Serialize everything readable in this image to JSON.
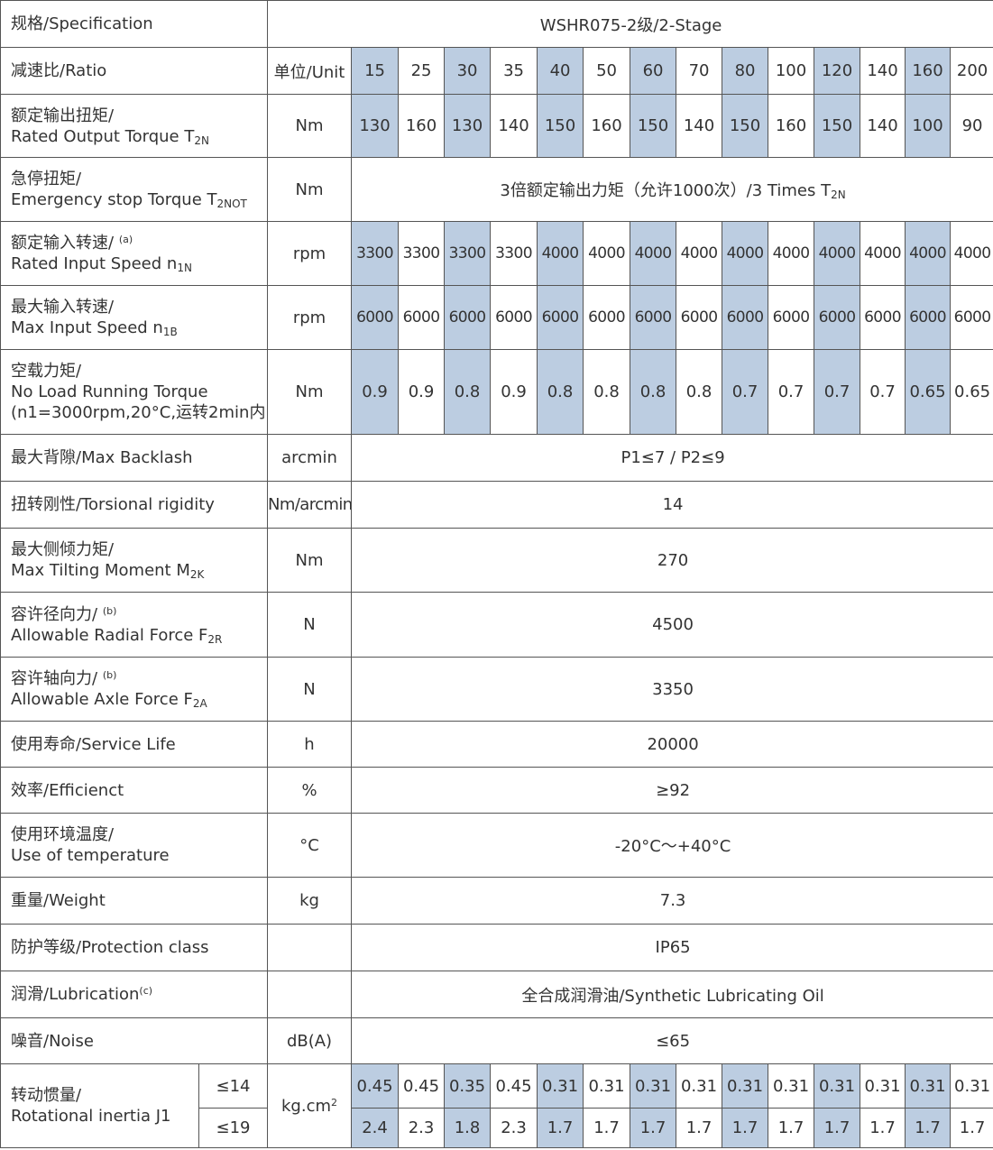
{
  "ratio_columns": [
    "15",
    "25",
    "30",
    "35",
    "40",
    "50",
    "60",
    "70",
    "80",
    "100",
    "120",
    "140",
    "160",
    "200"
  ],
  "shade_pattern": [
    true,
    false,
    true,
    false,
    true,
    false,
    true,
    false,
    true,
    false,
    true,
    false,
    true,
    false
  ],
  "spec": {
    "label": "规格/Specification",
    "value": "WSHR075-2级/2-Stage"
  },
  "ratio": {
    "label": "减速比/Ratio",
    "unit": "单位/Unit"
  },
  "rated_torque": {
    "label_cn": "额定输出扭矩/",
    "label_en": "Rated Output Torque T",
    "label_sub": "2N",
    "unit": "Nm",
    "values": [
      "130",
      "160",
      "130",
      "140",
      "150",
      "160",
      "150",
      "140",
      "150",
      "160",
      "150",
      "140",
      "100",
      "90"
    ]
  },
  "emergency_torque": {
    "label_cn": "急停扭矩/",
    "label_en": "Emergency stop Torque T",
    "label_sub": "2NOT",
    "unit": "Nm",
    "value": "3倍额定输出力矩（允许1000次）/3 Times T",
    "value_sub": "2N"
  },
  "rated_input_speed": {
    "label_cn": "额定输入转速/",
    "label_note": "(a)",
    "label_en": "Rated Input Speed n",
    "label_sub": "1N",
    "unit": "rpm",
    "values": [
      "3300",
      "3300",
      "3300",
      "3300",
      "4000",
      "4000",
      "4000",
      "4000",
      "4000",
      "4000",
      "4000",
      "4000",
      "4000",
      "4000"
    ]
  },
  "max_input_speed": {
    "label_cn": "最大输入转速/",
    "label_en": "Max Input Speed n",
    "label_sub": "1B",
    "unit": "rpm",
    "values": [
      "6000",
      "6000",
      "6000",
      "6000",
      "6000",
      "6000",
      "6000",
      "6000",
      "6000",
      "6000",
      "6000",
      "6000",
      "6000",
      "6000"
    ]
  },
  "no_load_torque": {
    "label_cn": "空载力矩/",
    "label_en": "No Load Running Torque",
    "label_cond": "(n1=3000rpm,20°C,运转2min内)",
    "unit": "Nm",
    "values": [
      "0.9",
      "0.9",
      "0.8",
      "0.9",
      "0.8",
      "0.8",
      "0.8",
      "0.8",
      "0.7",
      "0.7",
      "0.7",
      "0.7",
      "0.65",
      "0.65"
    ]
  },
  "max_backlash": {
    "label": "最大背隙/Max Backlash",
    "unit": "arcmin",
    "value": "P1≤7 / P2≤9"
  },
  "torsional_rigidity": {
    "label": "扭转刚性/Torsional rigidity",
    "unit": "Nm/arcmin",
    "value": "14"
  },
  "max_tilting_moment": {
    "label_cn": "最大侧倾力矩/",
    "label_en": "Max Tilting Moment M",
    "label_sub": "2K",
    "unit": "Nm",
    "value": "270"
  },
  "radial_force": {
    "label_cn": "容许径向力/",
    "label_note": "(b)",
    "label_en": "Allowable Radial Force F",
    "label_sub": "2R",
    "unit": "N",
    "value": "4500"
  },
  "axle_force": {
    "label_cn": "容许轴向力/",
    "label_note": "(b)",
    "label_en": "Allowable Axle Force F",
    "label_sub": "2A",
    "unit": "N",
    "value": "3350"
  },
  "service_life": {
    "label": "使用寿命/Service Life",
    "unit": "h",
    "value": "20000"
  },
  "efficiency": {
    "label": "效率/Efficienct",
    "unit": "%",
    "value": "≥92"
  },
  "temperature": {
    "label_cn": "使用环境温度/",
    "label_en": "Use of temperature",
    "unit": "°C",
    "value": "-20°C～+40°C"
  },
  "weight": {
    "label": "重量/Weight",
    "unit": "kg",
    "value": "7.3"
  },
  "protection": {
    "label": "防护等级/Protection class",
    "unit": "",
    "value": "IP65"
  },
  "lubrication": {
    "label": "润滑/Lubrication",
    "label_note": "(c)",
    "unit": "",
    "value": "全合成润滑油/Synthetic Lubricating Oil"
  },
  "noise": {
    "label": "噪音/Noise",
    "unit": "dB(A)",
    "value": "≤65"
  },
  "inertia": {
    "label_cn": "转动惯量/",
    "label_en": "Rotational inertia J1",
    "unit": "kg.cm",
    "unit_sup": "2",
    "rows": [
      {
        "sub": "≤14",
        "values": [
          "0.45",
          "0.45",
          "0.35",
          "0.45",
          "0.31",
          "0.31",
          "0.31",
          "0.31",
          "0.31",
          "0.31",
          "0.31",
          "0.31",
          "0.31",
          "0.31"
        ]
      },
      {
        "sub": "≤19",
        "values": [
          "2.4",
          "2.3",
          "1.8",
          "2.3",
          "1.7",
          "1.7",
          "1.7",
          "1.7",
          "1.7",
          "1.7",
          "1.7",
          "1.7",
          "1.7",
          "1.7"
        ]
      }
    ]
  }
}
